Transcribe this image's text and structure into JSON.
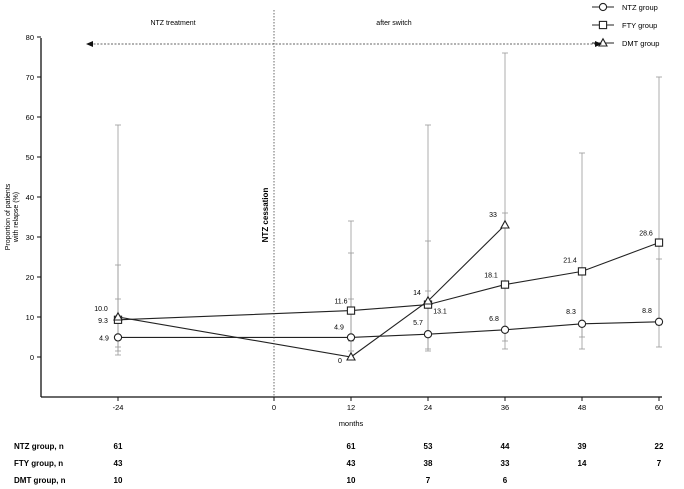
{
  "chart_data": {
    "type": "line",
    "ylabel": "Proportion of patients with relapse (%)",
    "ylabel_lines": [
      "Proportion of patients",
      "with relapse (%)"
    ],
    "xlabel": "months",
    "ylim": [
      0,
      80
    ],
    "yticks": [
      0,
      10,
      20,
      30,
      40,
      50,
      60,
      70,
      80
    ],
    "xlim": [
      -36,
      60
    ],
    "xticks": [
      -24,
      0,
      12,
      24,
      36,
      48,
      60
    ],
    "grid": false,
    "legend_position": "top-right",
    "annotations": {
      "phase_left": "NTZ treatment",
      "phase_right": "after switch",
      "cessation": "NTZ cessation",
      "cessation_x": 0
    },
    "series": [
      {
        "name": "NTZ group",
        "marker": "circle",
        "points": [
          {
            "x": -24,
            "y": 4.9,
            "label": "4.9",
            "err": [
              1.5,
              14.5
            ]
          },
          {
            "x": 12,
            "y": 4.9,
            "label": "4.9",
            "err": [
              1.5,
              14.5
            ]
          },
          {
            "x": 24,
            "y": 5.7,
            "label": "5.7",
            "err": [
              1.5,
              16.5
            ]
          },
          {
            "x": 36,
            "y": 6.8,
            "label": "6.8",
            "err": [
              2.0,
              19.0
            ]
          },
          {
            "x": 48,
            "y": 8.3,
            "label": "8.3",
            "err": [
              2.0,
              21.5
            ]
          },
          {
            "x": 60,
            "y": 8.8,
            "label": "8.8",
            "err": [
              2.5,
              24.5
            ]
          }
        ]
      },
      {
        "name": "FTY group",
        "marker": "square",
        "points": [
          {
            "x": -24,
            "y": 9.3,
            "label": "9.3",
            "err": [
              2.5,
              23.0
            ]
          },
          {
            "x": 12,
            "y": 11.6,
            "label": "11.6",
            "err": [
              4.0,
              26.0
            ]
          },
          {
            "x": 24,
            "y": 13.1,
            "label": "13.1",
            "err": [
              5.0,
              29.0
            ]
          },
          {
            "x": 36,
            "y": 18.1,
            "label": "18.1",
            "err": [
              7.0,
              36.0
            ]
          },
          {
            "x": 48,
            "y": 21.4,
            "label": "21.4",
            "err": [
              5.0,
              51.0
            ]
          },
          {
            "x": 60,
            "y": 28.6,
            "label": "28.6",
            "err": [
              8.0,
              70.0
            ]
          }
        ]
      },
      {
        "name": "DMT group",
        "marker": "triangle",
        "points": [
          {
            "x": -24,
            "y": 10.0,
            "label": "10.0",
            "err": [
              0.5,
              58.0
            ]
          },
          {
            "x": 12,
            "y": 0,
            "label": "0",
            "err": [
              0,
              34.0
            ]
          },
          {
            "x": 24,
            "y": 14,
            "label": "14",
            "err": [
              2.0,
              58.0
            ]
          },
          {
            "x": 36,
            "y": 33,
            "label": "33",
            "err": [
              4.0,
              76.0
            ]
          }
        ]
      }
    ],
    "risk_table": {
      "rows": [
        {
          "label": "NTZ group, n",
          "values": [
            {
              "x": -24,
              "n": "61"
            },
            {
              "x": 12,
              "n": "61"
            },
            {
              "x": 24,
              "n": "53"
            },
            {
              "x": 36,
              "n": "44"
            },
            {
              "x": 48,
              "n": "39"
            },
            {
              "x": 60,
              "n": "22"
            }
          ]
        },
        {
          "label": "FTY group, n",
          "values": [
            {
              "x": -24,
              "n": "43"
            },
            {
              "x": 12,
              "n": "43"
            },
            {
              "x": 24,
              "n": "38"
            },
            {
              "x": 36,
              "n": "33"
            },
            {
              "x": 48,
              "n": "14"
            },
            {
              "x": 60,
              "n": "7"
            }
          ]
        },
        {
          "label": "DMT group, n",
          "values": [
            {
              "x": -24,
              "n": "10"
            },
            {
              "x": 12,
              "n": "10"
            },
            {
              "x": 24,
              "n": "7"
            },
            {
              "x": 36,
              "n": "6"
            }
          ]
        }
      ]
    }
  }
}
